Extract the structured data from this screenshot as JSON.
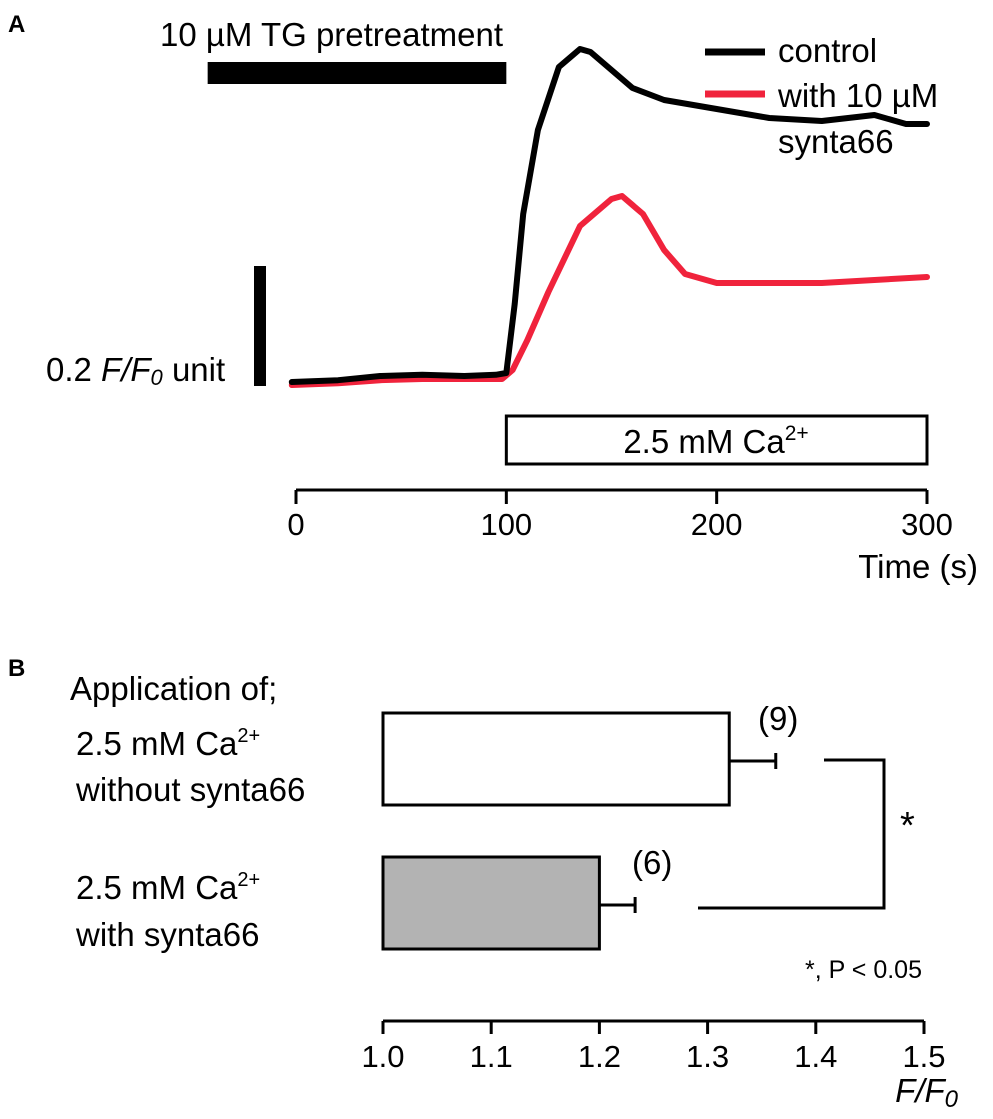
{
  "panel_a": {
    "label": "A",
    "pretreatment_label": "10 µM TG pretreatment",
    "scale_bar_value": "0.2",
    "scale_bar_unit_italic": "F/F",
    "scale_bar_unit_sub": "0",
    "scale_bar_unit_suffix": " unit",
    "ca_box_label": "2.5 mM Ca",
    "ca_box_sup": "2+",
    "legend": {
      "control": "control",
      "synta_line1": "with 10 µM",
      "synta_line2": "synta66"
    }
  },
  "panel_b": {
    "label": "B",
    "heading": "Application of;",
    "bar1_line1": "2.5 mM Ca",
    "bar1_sup": "2+",
    "bar1_line2": "without synta66",
    "bar2_line1": "2.5 mM Ca",
    "bar2_sup": "2+",
    "bar2_line2": "with synta66",
    "significance_mark": "*",
    "significance_note": "*, P < 0.05",
    "xlabel_italic": "F/F",
    "xlabel_sub": "0"
  },
  "colors": {
    "control": "#000000",
    "synta66": "#f0233c",
    "bar_with": "#b3b3b3",
    "bar_without": "#ffffff"
  },
  "chart_data": [
    {
      "type": "line",
      "xlabel": "Time (s)",
      "xlim": [
        0,
        300
      ],
      "xticks": [
        0,
        100,
        200,
        300
      ],
      "ylim": [
        0.95,
        1.62
      ],
      "scale_bar_ff0": 0.2,
      "pretreatment_interval": [
        -42,
        100
      ],
      "ca_interval": [
        100,
        300
      ],
      "series": [
        {
          "name": "control",
          "color": "#000000",
          "x": [
            -2,
            20,
            40,
            60,
            80,
            95,
            100,
            104,
            108,
            115,
            125,
            135,
            140,
            150,
            160,
            175,
            200,
            225,
            250,
            275,
            290,
            300
          ],
          "y": [
            1.0,
            1.003,
            1.01,
            1.012,
            1.01,
            1.012,
            1.015,
            1.13,
            1.28,
            1.42,
            1.525,
            1.555,
            1.55,
            1.52,
            1.49,
            1.47,
            1.455,
            1.44,
            1.435,
            1.445,
            1.43,
            1.43
          ]
        },
        {
          "name": "with 10 µM synta66",
          "color": "#f0233c",
          "x": [
            -2,
            20,
            40,
            60,
            80,
            98,
            103,
            110,
            120,
            135,
            150,
            155,
            165,
            175,
            185,
            200,
            225,
            250,
            275,
            300
          ],
          "y": [
            0.995,
            0.998,
            1.003,
            1.005,
            1.005,
            1.005,
            1.02,
            1.07,
            1.15,
            1.26,
            1.305,
            1.31,
            1.28,
            1.22,
            1.18,
            1.165,
            1.165,
            1.165,
            1.17,
            1.175
          ]
        }
      ]
    },
    {
      "type": "bar",
      "orientation": "horizontal",
      "categories": [
        "2.5 mM Ca2+ without synta66",
        "2.5 mM Ca2+ with synta66"
      ],
      "values": [
        1.32,
        1.2
      ],
      "errors": [
        0.043,
        0.033
      ],
      "n_labels": [
        "(9)",
        "(6)"
      ],
      "xlim": [
        1.0,
        1.5
      ],
      "xticks": [
        "1.0",
        "1.1",
        "1.2",
        "1.3",
        "1.4",
        "1.5"
      ],
      "xlabel": "F/F0"
    }
  ]
}
